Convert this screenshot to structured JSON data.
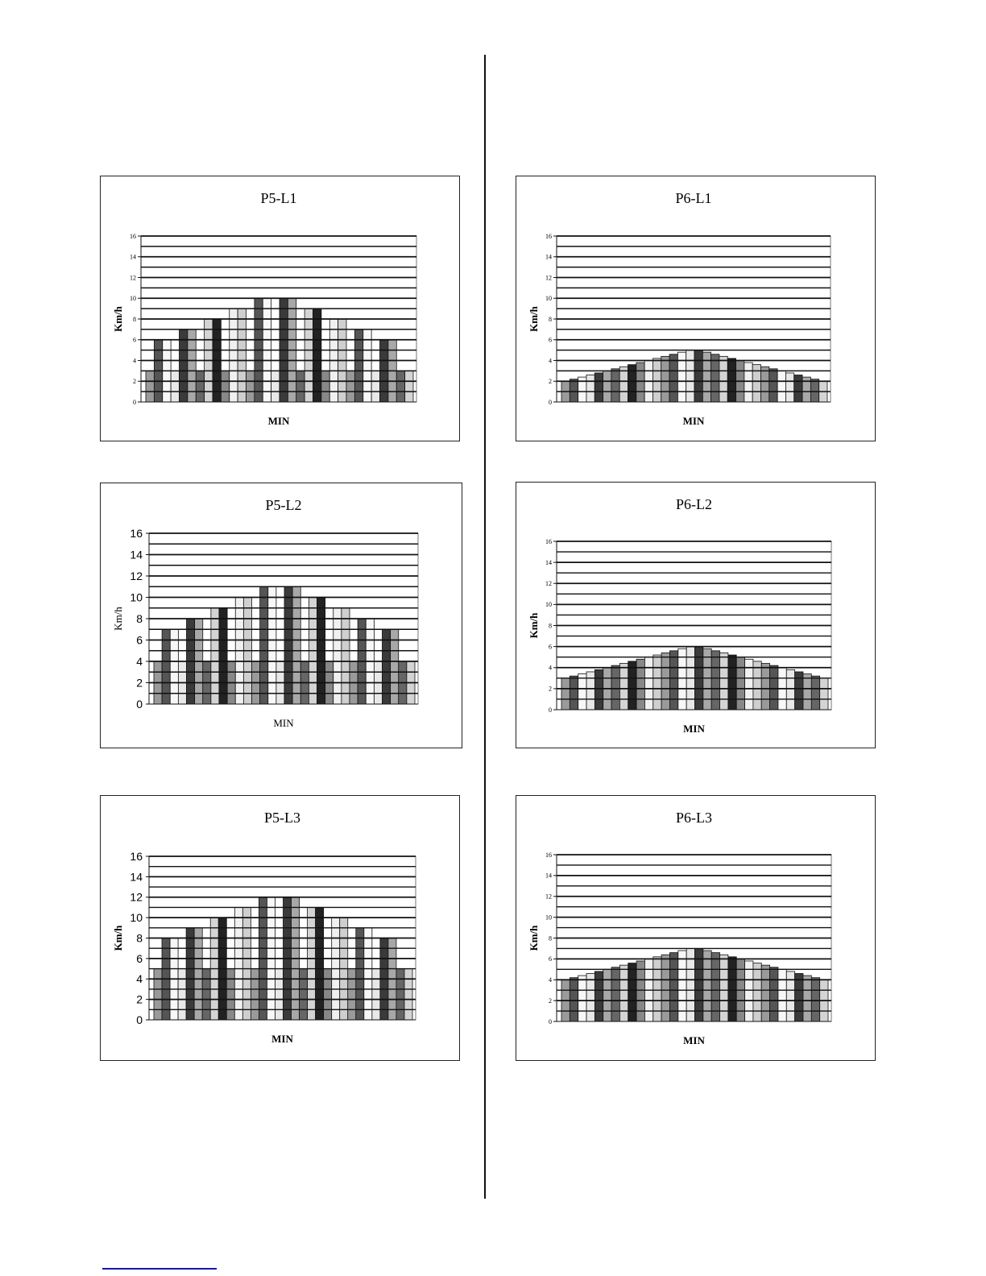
{
  "chart_data": [
    {
      "type": "bar",
      "title": "P5-L1",
      "xlabel": "MIN",
      "ylabel": "Km/h",
      "ylim": [
        0,
        16
      ],
      "yticks": [
        0,
        2,
        4,
        6,
        8,
        10,
        12,
        14,
        16
      ],
      "grid": true,
      "values": [
        3,
        6,
        6,
        3,
        7,
        7,
        3,
        8,
        8,
        3,
        9,
        9,
        3,
        10,
        10,
        3,
        10,
        10,
        3,
        9,
        9,
        3,
        8,
        8,
        3,
        7,
        7,
        3,
        6,
        6,
        3,
        3
      ]
    },
    {
      "type": "bar",
      "title": "P5-L2",
      "xlabel": "MIN",
      "ylabel": "Km/h",
      "ylim": [
        0,
        16
      ],
      "yticks": [
        0,
        2,
        4,
        6,
        8,
        10,
        12,
        14,
        16
      ],
      "grid": true,
      "values": [
        4,
        7,
        7,
        4,
        8,
        8,
        4,
        9,
        9,
        4,
        10,
        10,
        4,
        11,
        11,
        4,
        11,
        11,
        4,
        10,
        10,
        4,
        9,
        9,
        4,
        8,
        8,
        4,
        7,
        7,
        4,
        4
      ]
    },
    {
      "type": "bar",
      "title": "P5-L3",
      "xlabel": "MIN",
      "ylabel": "Km/h",
      "ylim": [
        0,
        16
      ],
      "yticks": [
        0,
        2,
        4,
        6,
        8,
        10,
        12,
        14,
        16
      ],
      "grid": true,
      "values": [
        5,
        8,
        8,
        5,
        9,
        9,
        5,
        10,
        10,
        5,
        11,
        11,
        5,
        12,
        12,
        5,
        12,
        12,
        5,
        11,
        11,
        5,
        10,
        10,
        5,
        9,
        9,
        5,
        8,
        8,
        5,
        5
      ]
    },
    {
      "type": "bar",
      "title": "P6-L1",
      "xlabel": "MIN",
      "ylabel": "Km/h",
      "ylim": [
        0,
        16
      ],
      "yticks": [
        0,
        2,
        4,
        6,
        8,
        10,
        12,
        14,
        16
      ],
      "grid": true,
      "values": [
        2,
        2.2,
        2.4,
        2.6,
        2.8,
        3,
        3.2,
        3.4,
        3.6,
        3.8,
        4,
        4.2,
        4.4,
        4.6,
        4.8,
        5,
        5,
        4.8,
        4.6,
        4.4,
        4.2,
        4,
        3.8,
        3.6,
        3.4,
        3.2,
        3,
        2.8,
        2.6,
        2.4,
        2.2,
        2
      ]
    },
    {
      "type": "bar",
      "title": "P6-L2",
      "xlabel": "MIN",
      "ylabel": "Km/h",
      "ylim": [
        0,
        16
      ],
      "yticks": [
        0,
        2,
        4,
        6,
        8,
        10,
        12,
        14,
        16
      ],
      "grid": true,
      "values": [
        3,
        3.2,
        3.4,
        3.6,
        3.8,
        4,
        4.2,
        4.4,
        4.6,
        4.8,
        5,
        5.2,
        5.4,
        5.6,
        5.8,
        6,
        6,
        5.8,
        5.6,
        5.4,
        5.2,
        5,
        4.8,
        4.6,
        4.4,
        4.2,
        4,
        3.8,
        3.6,
        3.4,
        3.2,
        3
      ]
    },
    {
      "type": "bar",
      "title": "P6-L3",
      "xlabel": "MIN",
      "ylabel": "Km/h",
      "ylim": [
        0,
        16
      ],
      "yticks": [
        0,
        2,
        4,
        6,
        8,
        10,
        12,
        14,
        16
      ],
      "grid": true,
      "values": [
        4,
        4.2,
        4.4,
        4.6,
        4.8,
        5,
        5.2,
        5.4,
        5.6,
        5.8,
        6,
        6.2,
        6.4,
        6.6,
        6.8,
        7,
        7,
        6.8,
        6.6,
        6.4,
        6.2,
        6,
        5.8,
        5.6,
        5.4,
        5.2,
        5,
        4.8,
        4.6,
        4.4,
        4.2,
        4
      ]
    }
  ],
  "bar_colors": [
    "#9a9a9a",
    "#555555",
    "#f7f7f7",
    "#e8e8e8",
    "#3a3a3a",
    "#a8a8a8",
    "#666666",
    "#d4d4d4",
    "#222222",
    "#888888",
    "#f0f0f0",
    "#cfcfcf"
  ]
}
